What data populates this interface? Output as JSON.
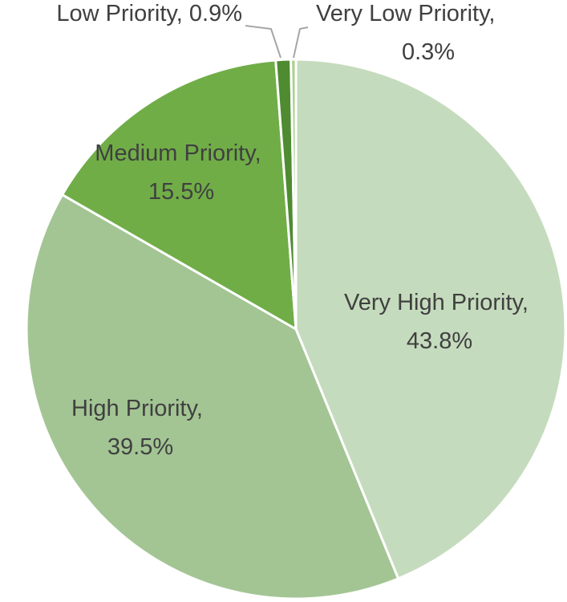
{
  "chart_data": {
    "type": "pie",
    "categories": [
      "Very High Priority",
      "High Priority",
      "Medium Priority",
      "Low Priority",
      "Very Low Priority"
    ],
    "values": [
      43.8,
      39.5,
      15.5,
      0.9,
      0.3
    ],
    "value_labels": [
      "43.8%",
      "39.5%",
      "15.5%",
      "0.9%",
      "0.3%"
    ],
    "label_separator": ", ",
    "colors": [
      "#c5dbbd",
      "#a3c594",
      "#70ad47",
      "#4e8b31",
      "#a9d08e"
    ]
  }
}
